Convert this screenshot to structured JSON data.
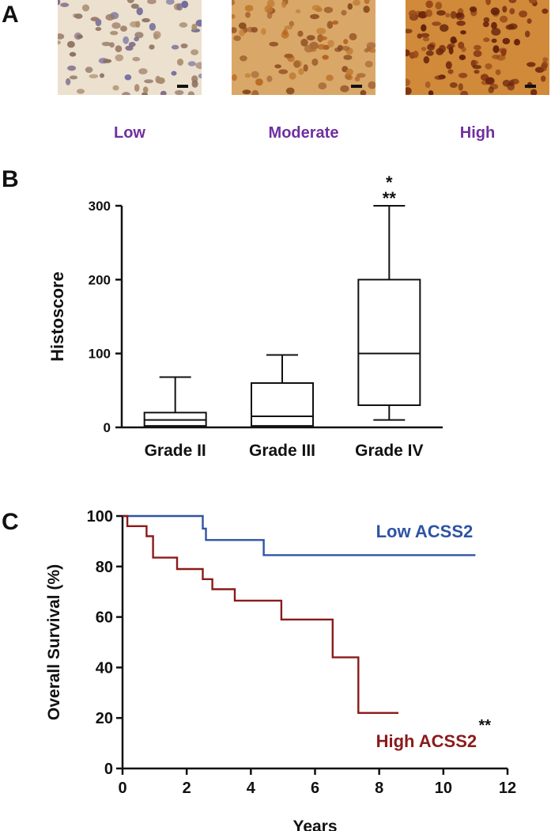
{
  "panels": {
    "A": {
      "letter": "A",
      "tiles": [
        {
          "label": "Low",
          "stain": "low"
        },
        {
          "label": "Moderate",
          "stain": "moderate"
        },
        {
          "label": "High",
          "stain": "high"
        }
      ],
      "colors": {
        "label": "#7030a0"
      }
    },
    "B": {
      "letter": "B"
    },
    "C": {
      "letter": "C"
    }
  },
  "chart_data": [
    {
      "type": "box",
      "panel": "B",
      "ylabel": "Histoscore",
      "ylim": [
        0,
        300
      ],
      "yticks": [
        0,
        100,
        200,
        300
      ],
      "categories": [
        "Grade II",
        "Grade III",
        "Grade IV"
      ],
      "boxes": [
        {
          "category": "Grade II",
          "min": 0,
          "q1": 2,
          "median": 10,
          "q3": 20,
          "max": 68
        },
        {
          "category": "Grade III",
          "min": 0,
          "q1": 2,
          "median": 15,
          "q3": 60,
          "max": 98
        },
        {
          "category": "Grade IV",
          "min": 10,
          "q1": 30,
          "median": 100,
          "q3": 200,
          "max": 300
        }
      ],
      "annotations": [
        {
          "category": "Grade IV",
          "text": "*"
        },
        {
          "category": "Grade IV",
          "text": "**"
        }
      ]
    },
    {
      "type": "line",
      "subtype": "step",
      "panel": "C",
      "xlabel": "Years",
      "ylabel": "Overall Survival (%)",
      "xlim": [
        0,
        12
      ],
      "ylim": [
        0,
        100
      ],
      "xticks": [
        0,
        2,
        4,
        6,
        8,
        10,
        12
      ],
      "yticks": [
        0,
        20,
        40,
        60,
        80,
        100
      ],
      "series": [
        {
          "name": "Low ACSS2",
          "color": "#2e54a4",
          "x": [
            0,
            2.5,
            2.6,
            4.4,
            11.0
          ],
          "y": [
            100,
            95,
            90.5,
            84.5,
            84.5
          ]
        },
        {
          "name": "High ACSS2",
          "color": "#8b1a1a",
          "x": [
            0,
            0.15,
            0.75,
            0.95,
            1.7,
            2.5,
            2.8,
            3.5,
            4.95,
            6.55,
            7.35,
            8.6
          ],
          "y": [
            100,
            96,
            92,
            83.5,
            79,
            75,
            71,
            66.5,
            59,
            44,
            22,
            22
          ]
        }
      ],
      "annotations": [
        {
          "series": "High ACSS2",
          "text": "**"
        }
      ]
    }
  ]
}
